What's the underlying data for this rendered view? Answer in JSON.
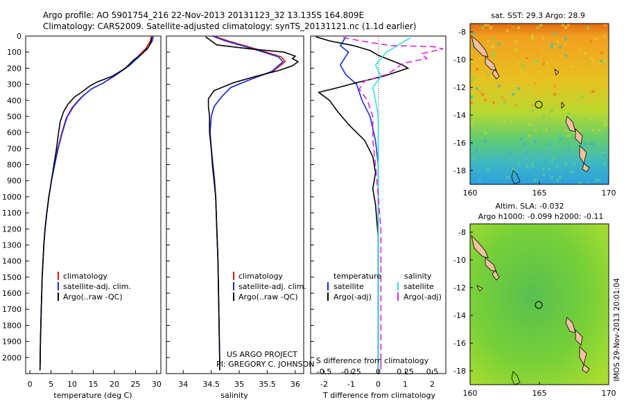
{
  "header": {
    "line1": "Argo profile: AO 5901754_216 22-Nov-2013 20131123_32 13.135S 164.809E",
    "line2": "Climatology: CARS2009. Satellite-adjusted climatology: synTS_20131121.nc (1.1d earlier)"
  },
  "project": {
    "line1": "US ARGO PROJECT",
    "line2": "PI: GREGORY C. JOHNSON"
  },
  "side_label": "IMOS 29-Nov-2013 20:01:04",
  "colors": {
    "clim": "#e01010",
    "sat_t": "#1030e0",
    "argo": "#000000",
    "sat_s": "#30e0e0",
    "argo_s": "#e020e0"
  },
  "legend_left": {
    "clim": "climatology",
    "sat": "satellite-adj. clim.",
    "argo": "Argo(..raw -QC)"
  },
  "legend_diff": {
    "t_head": "temperature",
    "s_head": "salinity",
    "sat": "satellite",
    "argo": "Argo(-adj)"
  },
  "chart_data": [
    {
      "type": "line",
      "id": "temperature",
      "xlabel": "temperature (deg C)",
      "ylabel": "",
      "xlim": [
        -1,
        31
      ],
      "ylim": [
        2100,
        0
      ],
      "xticks": [
        0,
        5,
        10,
        15,
        20,
        25,
        30
      ],
      "yticks": [
        0,
        100,
        200,
        300,
        400,
        500,
        600,
        700,
        800,
        900,
        1000,
        1100,
        1200,
        1300,
        1400,
        1500,
        1600,
        1700,
        1800,
        1900,
        2000
      ],
      "series": [
        {
          "name": "climatology",
          "color": "#e01010",
          "points": [
            [
              28.8,
              0
            ],
            [
              28.5,
              30
            ],
            [
              27.5,
              75
            ],
            [
              25.5,
              130
            ],
            [
              23,
              190
            ],
            [
              20.5,
              240
            ],
            [
              17.5,
              290
            ],
            [
              14.5,
              330
            ],
            [
              12,
              385
            ],
            [
              10,
              445
            ],
            [
              8.6,
              510
            ],
            [
              7.6,
              600
            ],
            [
              6.6,
              700
            ],
            [
              5.8,
              800
            ],
            [
              5.1,
              900
            ],
            [
              4.5,
              1000
            ],
            [
              4,
              1100
            ],
            [
              3.6,
              1200
            ],
            [
              3.3,
              1300
            ],
            [
              3.1,
              1400
            ],
            [
              2.9,
              1500
            ],
            [
              2.8,
              1600
            ],
            [
              2.7,
              1700
            ],
            [
              2.6,
              1800
            ],
            [
              2.5,
              1900
            ],
            [
              2.45,
              2000
            ],
            [
              2.4,
              2080
            ]
          ]
        },
        {
          "name": "satellite-adj. clim.",
          "color": "#1030e0",
          "points": [
            [
              29.2,
              0
            ],
            [
              29,
              30
            ],
            [
              28,
              70
            ],
            [
              26,
              125
            ],
            [
              23.5,
              185
            ],
            [
              20.5,
              240
            ],
            [
              17.5,
              290
            ],
            [
              14.5,
              330
            ],
            [
              12.3,
              380
            ],
            [
              10.3,
              440
            ],
            [
              8.8,
              505
            ],
            [
              7.7,
              600
            ],
            [
              6.7,
              700
            ],
            [
              5.9,
              800
            ],
            [
              5.1,
              900
            ],
            [
              4.5,
              1000
            ],
            [
              4,
              1100
            ],
            [
              3.6,
              1200
            ],
            [
              3.3,
              1300
            ],
            [
              3.1,
              1400
            ],
            [
              2.9,
              1500
            ],
            [
              2.8,
              1600
            ],
            [
              2.7,
              1700
            ],
            [
              2.6,
              1800
            ],
            [
              2.5,
              1900
            ],
            [
              2.45,
              2000
            ],
            [
              2.4,
              2080
            ]
          ]
        },
        {
          "name": "Argo(..raw -QC)",
          "color": "#000000",
          "points": [
            [
              28.9,
              5
            ],
            [
              28.6,
              40
            ],
            [
              27.8,
              80
            ],
            [
              26.5,
              110
            ],
            [
              24.5,
              150
            ],
            [
              22.6,
              200
            ],
            [
              19.5,
              250
            ],
            [
              16,
              285
            ],
            [
              14.2,
              310
            ],
            [
              12.5,
              345
            ],
            [
              10.5,
              380
            ],
            [
              9,
              425
            ],
            [
              8,
              470
            ],
            [
              7.2,
              530
            ],
            [
              6.8,
              600
            ],
            [
              6.3,
              700
            ],
            [
              5.7,
              800
            ],
            [
              5.1,
              900
            ],
            [
              4.5,
              1000
            ],
            [
              4,
              1100
            ],
            [
              3.6,
              1200
            ],
            [
              3.3,
              1300
            ],
            [
              3.1,
              1400
            ],
            [
              2.9,
              1500
            ],
            [
              2.8,
              1600
            ],
            [
              2.7,
              1700
            ],
            [
              2.6,
              1800
            ],
            [
              2.5,
              1900
            ],
            [
              2.45,
              2000
            ],
            [
              2.4,
              2080
            ]
          ]
        }
      ]
    },
    {
      "type": "line",
      "id": "salinity",
      "xlabel": "salinity",
      "ylabel": "",
      "xlim": [
        33.7,
        36.15
      ],
      "ylim": [
        2100,
        0
      ],
      "xticks": [
        34,
        34.5,
        35,
        35.5,
        36
      ],
      "series": [
        {
          "name": "climatology",
          "color": "#e01010",
          "points": [
            [
              34.55,
              0
            ],
            [
              34.8,
              30
            ],
            [
              35.3,
              80
            ],
            [
              35.75,
              130
            ],
            [
              35.82,
              160
            ],
            [
              35.6,
              220
            ],
            [
              35.2,
              270
            ],
            [
              34.85,
              320
            ],
            [
              34.68,
              380
            ],
            [
              34.55,
              440
            ],
            [
              34.5,
              500
            ],
            [
              34.48,
              600
            ],
            [
              34.5,
              700
            ],
            [
              34.53,
              800
            ],
            [
              34.56,
              900
            ],
            [
              34.58,
              1000
            ],
            [
              34.6,
              1200
            ],
            [
              34.62,
              1400
            ],
            [
              34.63,
              1600
            ],
            [
              34.64,
              1800
            ],
            [
              34.65,
              2000
            ],
            [
              34.65,
              2080
            ]
          ]
        },
        {
          "name": "satellite-adj. clim.",
          "color": "#1030e0",
          "points": [
            [
              34.52,
              0
            ],
            [
              34.75,
              30
            ],
            [
              35.25,
              80
            ],
            [
              35.7,
              130
            ],
            [
              35.78,
              160
            ],
            [
              35.58,
              220
            ],
            [
              35.2,
              270
            ],
            [
              34.85,
              320
            ],
            [
              34.68,
              380
            ],
            [
              34.55,
              440
            ],
            [
              34.5,
              500
            ],
            [
              34.48,
              600
            ],
            [
              34.5,
              700
            ],
            [
              34.53,
              800
            ],
            [
              34.56,
              900
            ],
            [
              34.58,
              1000
            ],
            [
              34.6,
              1200
            ],
            [
              34.62,
              1400
            ],
            [
              34.63,
              1600
            ],
            [
              34.64,
              1800
            ],
            [
              34.65,
              2000
            ],
            [
              34.65,
              2080
            ]
          ]
        },
        {
          "name": "Argo(..raw -QC)",
          "color": "#000000",
          "points": [
            [
              34.4,
              5
            ],
            [
              34.5,
              30
            ],
            [
              34.6,
              55
            ],
            [
              35.2,
              80
            ],
            [
              35.8,
              100
            ],
            [
              36,
              125
            ],
            [
              35.95,
              140
            ],
            [
              36.05,
              160
            ],
            [
              35.95,
              185
            ],
            [
              35.7,
              215
            ],
            [
              35.3,
              250
            ],
            [
              34.9,
              290
            ],
            [
              34.55,
              340
            ],
            [
              34.45,
              390
            ],
            [
              34.45,
              440
            ],
            [
              34.47,
              500
            ],
            [
              34.47,
              600
            ],
            [
              34.5,
              700
            ],
            [
              34.52,
              800
            ],
            [
              34.55,
              900
            ],
            [
              34.58,
              1000
            ],
            [
              34.6,
              1200
            ],
            [
              34.62,
              1400
            ],
            [
              34.63,
              1600
            ],
            [
              34.64,
              1800
            ],
            [
              34.65,
              2000
            ],
            [
              34.65,
              2080
            ]
          ]
        }
      ]
    },
    {
      "type": "line",
      "id": "difference",
      "xlabel_top": "S difference from climatology",
      "xlabel": "T difference from climatology",
      "ylabel": "",
      "xlim": [
        -2.5,
        2.5
      ],
      "ylim": [
        2100,
        0
      ],
      "xticks_t": [
        -2,
        -1,
        0,
        1,
        2
      ],
      "xticks_s": [
        -0.5,
        -0.25,
        0,
        0.25,
        0.5
      ],
      "series": [
        {
          "name": "temperature satellite",
          "color": "#1030e0",
          "points": [
            [
              -1.2,
              5
            ],
            [
              -1.4,
              60
            ],
            [
              -1.1,
              100
            ],
            [
              -1.4,
              180
            ],
            [
              -1.2,
              240
            ],
            [
              -0.8,
              300
            ],
            [
              -0.6,
              400
            ],
            [
              -0.3,
              500
            ],
            [
              -0.1,
              650
            ],
            [
              0,
              800
            ],
            [
              0,
              1000
            ],
            [
              0,
              1200
            ],
            [
              0,
              1500
            ],
            [
              0,
              1800
            ],
            [
              0,
              2000
            ],
            [
              0,
              2080
            ]
          ]
        },
        {
          "name": "temperature Argo(-adj)",
          "color": "#000000",
          "points": [
            [
              -2.3,
              5
            ],
            [
              -1.8,
              30
            ],
            [
              -0.9,
              60
            ],
            [
              -0.3,
              90
            ],
            [
              0,
              120
            ],
            [
              0.9,
              180
            ],
            [
              1.1,
              200
            ],
            [
              0.2,
              250
            ],
            [
              -0.8,
              290
            ],
            [
              -1.7,
              330
            ],
            [
              -2.2,
              350
            ],
            [
              -1.8,
              400
            ],
            [
              -1.5,
              470
            ],
            [
              -1.1,
              550
            ],
            [
              -0.5,
              650
            ],
            [
              -0.2,
              750
            ],
            [
              -0.1,
              850
            ],
            [
              -0.2,
              950
            ],
            [
              -0.1,
              1050
            ],
            [
              -0.05,
              1150
            ],
            [
              0,
              1250
            ],
            [
              0,
              1400
            ],
            [
              0,
              1600
            ],
            [
              0,
              1800
            ],
            [
              0,
              2000
            ],
            [
              0,
              2080
            ]
          ]
        },
        {
          "name": "salinity satellite",
          "color": "#30e0e0",
          "points": [
            [
              1.2,
              10
            ],
            [
              0.7,
              60
            ],
            [
              0.3,
              100
            ],
            [
              -0.1,
              180
            ],
            [
              0.1,
              250
            ],
            [
              -0.2,
              320
            ],
            [
              -0.1,
              400
            ],
            [
              0,
              500
            ],
            [
              0,
              700
            ],
            [
              0,
              900
            ],
            [
              0,
              1200
            ],
            [
              0,
              1500
            ],
            [
              0,
              1800
            ],
            [
              0,
              2000
            ],
            [
              0,
              2080
            ]
          ]
        },
        {
          "name": "salinity Argo(-adj)",
          "color": "#e020e0",
          "points": [
            [
              -1.3,
              10
            ],
            [
              -0.3,
              40
            ],
            [
              0.5,
              60
            ],
            [
              2.0,
              65
            ],
            [
              2.4,
              80
            ],
            [
              1.6,
              110
            ],
            [
              1.8,
              140
            ],
            [
              0.9,
              170
            ],
            [
              0.6,
              210
            ],
            [
              0.3,
              240
            ],
            [
              -0.5,
              280
            ],
            [
              -0.7,
              330
            ],
            [
              -0.4,
              400
            ],
            [
              -0.2,
              500
            ],
            [
              -0.2,
              650
            ],
            [
              -0.1,
              800
            ],
            [
              0,
              1000
            ],
            [
              0.1,
              1200
            ],
            [
              0.1,
              1500
            ],
            [
              0.1,
              1800
            ],
            [
              0.1,
              2000
            ],
            [
              0.1,
              2080
            ]
          ]
        }
      ]
    },
    {
      "type": "heatmap",
      "id": "sst-map",
      "title": "sat. SST: 29.3 Argo: 28.9",
      "xlim": [
        160,
        170
      ],
      "ylim": [
        -19,
        -7.4
      ],
      "xticks": [
        160,
        165,
        170
      ],
      "yticks": [
        -8,
        -10,
        -12,
        -14,
        -16,
        -18
      ],
      "argo_position": [
        164.809,
        -13.135
      ]
    },
    {
      "type": "heatmap",
      "id": "sla-map",
      "title1": "Altim. SLA: -0.032",
      "title2": "Argo h1000: -0.099 h2000: -0.11",
      "xlim": [
        160,
        170
      ],
      "ylim": [
        -19,
        -7.4
      ],
      "xticks": [
        160,
        165,
        170
      ],
      "yticks": [
        -8,
        -10,
        -12,
        -14,
        -16,
        -18
      ],
      "argo_position": [
        164.809,
        -13.135
      ]
    }
  ]
}
